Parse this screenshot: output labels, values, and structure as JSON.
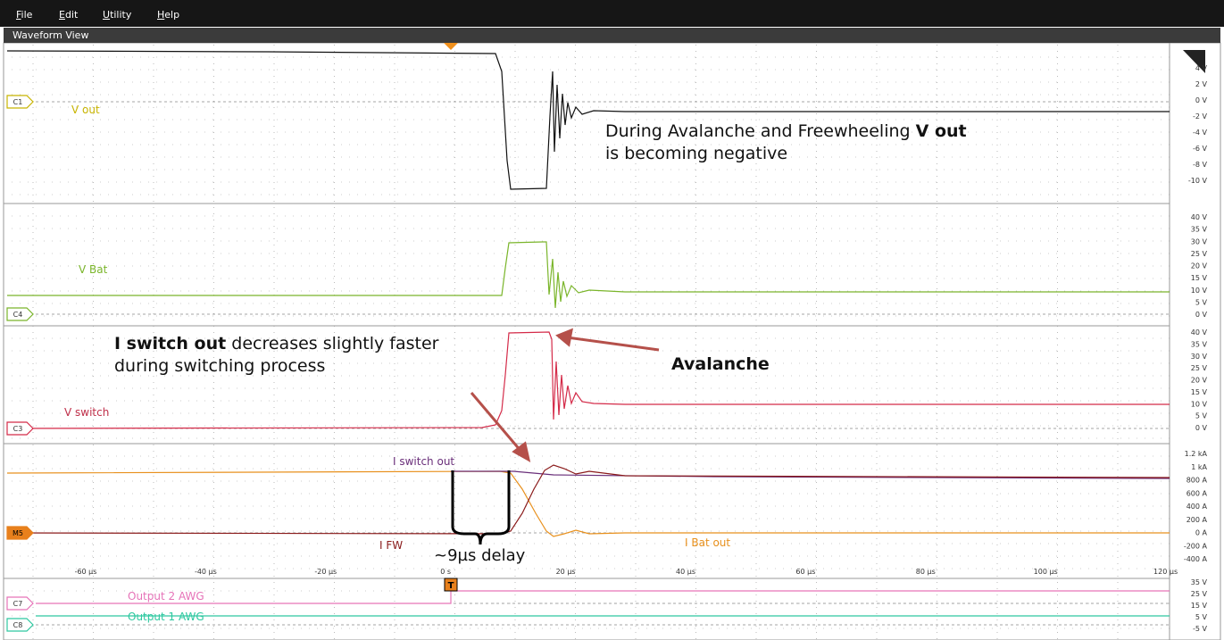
{
  "menu": [
    "File",
    "Edit",
    "Utility",
    "Help"
  ],
  "panel_title": "Waveform View",
  "panes": [
    {
      "badge": "C1",
      "label": "V out",
      "ticks": [
        "4 V",
        "2 V",
        "0 V",
        "-2 V",
        "-4 V",
        "-6 V",
        "-8 V",
        "-10 V"
      ]
    },
    {
      "badge": "C4",
      "label": "V Bat",
      "ticks": [
        "40 V",
        "35 V",
        "30 V",
        "25 V",
        "20 V",
        "15 V",
        "10 V",
        "5 V",
        "0 V"
      ]
    },
    {
      "badge": "C3",
      "label": "V switch",
      "ticks": [
        "40 V",
        "35 V",
        "30 V",
        "25 V",
        "20 V",
        "15 V",
        "10 V",
        "5 V",
        "0 V"
      ]
    },
    {
      "badge": "M5",
      "labels": [
        "I switch out",
        "I FW",
        "I Bat  out"
      ],
      "ticks": [
        "1.2 kA",
        "1 kA",
        "800 A",
        "600 A",
        "400 A",
        "200 A",
        "0 A",
        "-200 A",
        "-400 A"
      ]
    },
    {
      "badges": [
        "C7",
        "C8"
      ],
      "labels": [
        "Output 2 AWG",
        "Output 1 AWG"
      ],
      "ticks": [
        "35 V",
        "25 V",
        "15 V",
        "5 V",
        "-5 V"
      ]
    }
  ],
  "x_ticks": [
    "-60 µs",
    "-40 µs",
    "-20 µs",
    "0 s",
    "20 µs",
    "40 µs",
    "60 µs",
    "80 µs",
    "100 µs",
    "120 µs"
  ],
  "trigger": "T",
  "annotations": {
    "vout_note": {
      "before": "During Avalanche and Freewheeling",
      "bold": "V out",
      "after": "is becoming negative"
    },
    "iswitch_note": {
      "bold": "I switch out",
      "after": "decreases slightly faster during switching process"
    },
    "avalanche": "Avalanche",
    "delay": "~9µs delay"
  }
}
